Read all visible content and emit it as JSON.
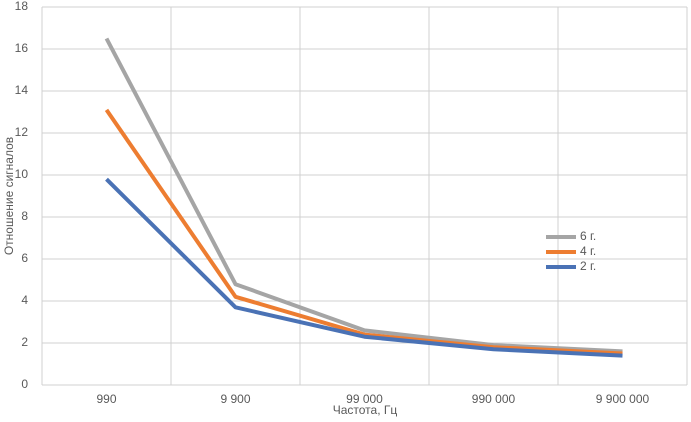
{
  "chart_data": {
    "type": "line",
    "x_label": "Частота, Гц",
    "y_label": "Отношение сигналов",
    "categories": [
      "990",
      "9 900",
      "99 000",
      "990 000",
      "9 900 000"
    ],
    "series": [
      {
        "name": "6 г.",
        "color": "#a5a5a5",
        "values": [
          16.5,
          4.8,
          2.6,
          1.9,
          1.6
        ]
      },
      {
        "name": "4 г.",
        "color": "#ed7d31",
        "values": [
          13.1,
          4.2,
          2.4,
          1.8,
          1.5
        ]
      },
      {
        "name": "2 г.",
        "color": "#4a72b5",
        "values": [
          9.8,
          3.7,
          2.3,
          1.7,
          1.4
        ]
      }
    ],
    "ylim": [
      0,
      18
    ],
    "yticks": [
      0,
      2,
      4,
      6,
      8,
      10,
      12,
      14,
      16,
      18
    ],
    "grid": true,
    "legend": "right"
  }
}
